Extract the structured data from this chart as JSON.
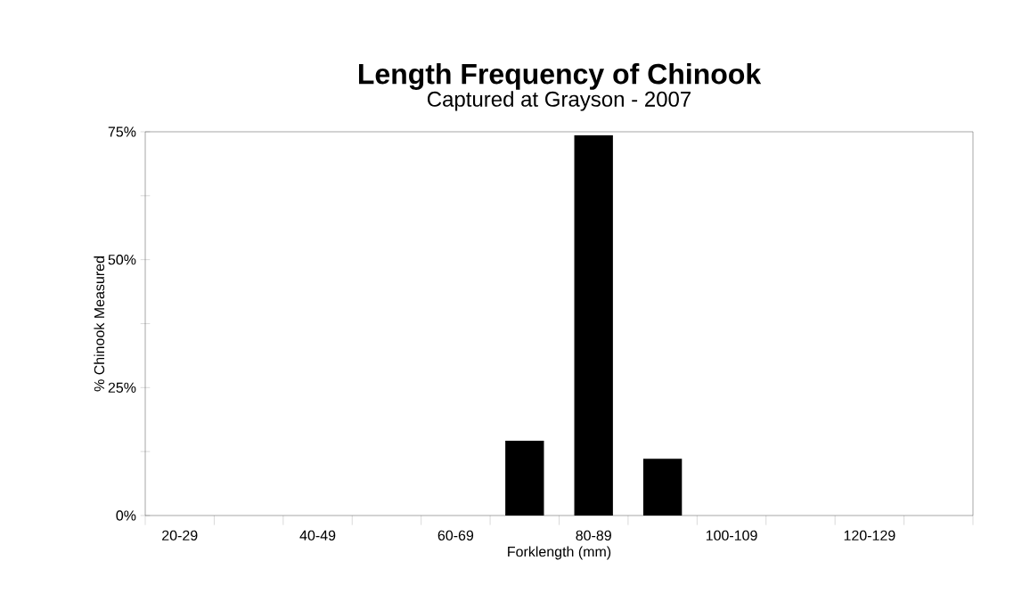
{
  "chart_data": {
    "type": "bar",
    "title": "Length Frequency of Chinook",
    "subtitle": "Captured at Grayson - 2007",
    "xlabel": "Forklength (mm)",
    "ylabel": "% Chinook Measured",
    "categories": [
      "20-29",
      null,
      "40-49",
      null,
      "60-69",
      null,
      "80-89",
      null,
      "100-109",
      null,
      "120-129",
      null
    ],
    "values": [
      0,
      0,
      0,
      0,
      0,
      14.6,
      74.3,
      11.1,
      0,
      0,
      0,
      0
    ],
    "color": "#000000",
    "ylim": [
      0,
      75
    ],
    "yticks": [
      {
        "value": 0,
        "label": "0%"
      },
      {
        "value": 12.5,
        "label": null
      },
      {
        "value": 25,
        "label": "25%"
      },
      {
        "value": 37.5,
        "label": null
      },
      {
        "value": 50,
        "label": "50%"
      },
      {
        "value": 62.5,
        "label": null
      },
      {
        "value": 75,
        "label": "75%"
      }
    ]
  }
}
